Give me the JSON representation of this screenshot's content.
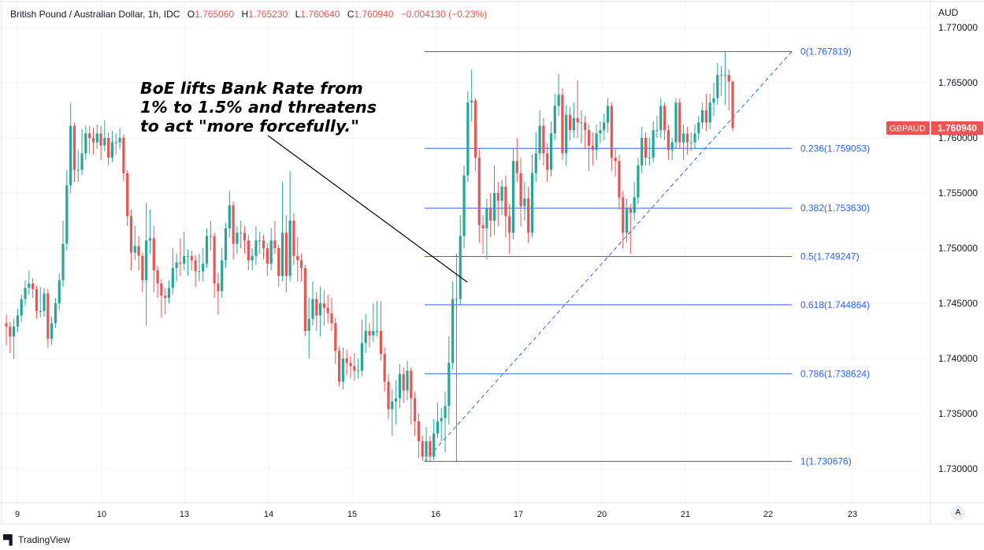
{
  "header": {
    "symbol_title": "British Pound / Australian Dollar, 1h, IDC",
    "open_label": "O",
    "open": "1.765060",
    "high_label": "H",
    "high": "1.765230",
    "low_label": "L",
    "low": "1.760640",
    "close_label": "C",
    "close": "1.760940",
    "change": "−0.004130 (−0.23%)"
  },
  "annotation": "BoE lifts Bank Rate from\n1% to 1.5% and threatens\nto act \"more forcefully.\"",
  "price_badge": {
    "symbol": "GBPAUD",
    "value": "1.760940",
    "color": "#ef5350"
  },
  "auto_scale_label": "A",
  "branding": {
    "logo": "17",
    "name": "TradingView"
  },
  "colors": {
    "up": "#26a69a",
    "down": "#ef5350",
    "fib": "#2962ff",
    "grid": "#f0f3fa"
  },
  "chart_data": {
    "type": "candlestick",
    "currency_label": "AUD",
    "ylim": [
      1.7275,
      1.7715
    ],
    "y_ticks": [
      "1.770000",
      "1.765000",
      "1.760000",
      "1.755000",
      "1.750000",
      "1.745000",
      "1.740000",
      "1.735000",
      "1.730000"
    ],
    "x_ticks": [
      "9",
      "10",
      "13",
      "14",
      "15",
      "16",
      "17",
      "20",
      "21",
      "22",
      "23"
    ],
    "grid": true,
    "fibonacci": [
      {
        "ratio": "0",
        "price": 1.767819,
        "label": "0(1.767819)"
      },
      {
        "ratio": "0.236",
        "price": 1.759053,
        "label": "0.236(1.759053)"
      },
      {
        "ratio": "0.382",
        "price": 1.75363,
        "label": "0.382(1.753630)"
      },
      {
        "ratio": "0.5",
        "price": 1.749247,
        "label": "0.5(1.749247)"
      },
      {
        "ratio": "0.618",
        "price": 1.744864,
        "label": "0.618(1.744864)"
      },
      {
        "ratio": "0.786",
        "price": 1.738624,
        "label": "0.786(1.738624)"
      },
      {
        "ratio": "1",
        "price": 1.730676,
        "label": "1(1.730676)"
      }
    ],
    "candles_ohlc": [
      [
        1.7432,
        1.744,
        1.7412,
        1.7429
      ],
      [
        1.7429,
        1.7433,
        1.7405,
        1.742
      ],
      [
        1.742,
        1.7436,
        1.74,
        1.7429
      ],
      [
        1.7429,
        1.7445,
        1.7424,
        1.7439
      ],
      [
        1.7439,
        1.7458,
        1.7433,
        1.7454
      ],
      [
        1.7454,
        1.7471,
        1.7448,
        1.7464
      ],
      [
        1.7464,
        1.748,
        1.7458,
        1.7468
      ],
      [
        1.7468,
        1.7473,
        1.7455,
        1.7463
      ],
      [
        1.7463,
        1.7466,
        1.7436,
        1.7443
      ],
      [
        1.7443,
        1.7465,
        1.7437,
        1.7443
      ],
      [
        1.7443,
        1.7464,
        1.7438,
        1.7459
      ],
      [
        1.7459,
        1.7463,
        1.741,
        1.7418
      ],
      [
        1.7418,
        1.7438,
        1.7412,
        1.7432
      ],
      [
        1.7432,
        1.7455,
        1.7428,
        1.745
      ],
      [
        1.745,
        1.7477,
        1.7444,
        1.7471
      ],
      [
        1.7471,
        1.7525,
        1.7465,
        1.7504
      ],
      [
        1.7504,
        1.7571,
        1.7498,
        1.7557
      ],
      [
        1.7557,
        1.7632,
        1.755,
        1.7611
      ],
      [
        1.7611,
        1.7614,
        1.756,
        1.7571
      ],
      [
        1.7571,
        1.7589,
        1.756,
        1.7571
      ],
      [
        1.7571,
        1.7608,
        1.7566,
        1.7586
      ],
      [
        1.7586,
        1.7611,
        1.758,
        1.7604
      ],
      [
        1.7604,
        1.7611,
        1.7586,
        1.76
      ],
      [
        1.76,
        1.7609,
        1.7585,
        1.7596
      ],
      [
        1.7596,
        1.7612,
        1.759,
        1.7604
      ],
      [
        1.7604,
        1.7611,
        1.758,
        1.7593
      ],
      [
        1.7593,
        1.7616,
        1.7588,
        1.76
      ],
      [
        1.76,
        1.7605,
        1.7575,
        1.7582
      ],
      [
        1.7582,
        1.7606,
        1.7578,
        1.7596
      ],
      [
        1.7596,
        1.7604,
        1.7585,
        1.7596
      ],
      [
        1.7596,
        1.7609,
        1.759,
        1.76
      ],
      [
        1.76,
        1.7603,
        1.7561,
        1.7568
      ],
      [
        1.7568,
        1.7571,
        1.752,
        1.7529
      ],
      [
        1.7529,
        1.7535,
        1.748,
        1.7496
      ],
      [
        1.7496,
        1.752,
        1.7489,
        1.7502
      ],
      [
        1.7502,
        1.7511,
        1.748,
        1.7493
      ],
      [
        1.7493,
        1.7496,
        1.746,
        1.7471
      ],
      [
        1.7471,
        1.7541,
        1.743,
        1.7507
      ],
      [
        1.7507,
        1.7535,
        1.7495,
        1.7509
      ],
      [
        1.7509,
        1.752,
        1.746,
        1.748
      ],
      [
        1.748,
        1.7484,
        1.7455,
        1.7468
      ],
      [
        1.7468,
        1.7472,
        1.7437,
        1.7457
      ],
      [
        1.7457,
        1.7464,
        1.744,
        1.7455
      ],
      [
        1.7455,
        1.7471,
        1.745,
        1.7464
      ],
      [
        1.7464,
        1.75,
        1.7458,
        1.7482
      ],
      [
        1.7482,
        1.7495,
        1.747,
        1.7487
      ],
      [
        1.7487,
        1.7509,
        1.7475,
        1.7486
      ],
      [
        1.7486,
        1.7515,
        1.748,
        1.7493
      ],
      [
        1.7493,
        1.7499,
        1.7475,
        1.7493
      ],
      [
        1.7493,
        1.7498,
        1.748,
        1.7489
      ],
      [
        1.7489,
        1.7494,
        1.7465,
        1.7479
      ],
      [
        1.7479,
        1.7495,
        1.747,
        1.7479
      ],
      [
        1.7479,
        1.75,
        1.747,
        1.7486
      ],
      [
        1.7486,
        1.7518,
        1.7482,
        1.7511
      ],
      [
        1.7511,
        1.7525,
        1.7498,
        1.7511
      ],
      [
        1.7511,
        1.7514,
        1.7455,
        1.7468
      ],
      [
        1.7468,
        1.7478,
        1.744,
        1.7461
      ],
      [
        1.7461,
        1.75,
        1.7455,
        1.7489
      ],
      [
        1.7489,
        1.7523,
        1.7482,
        1.7518
      ],
      [
        1.7518,
        1.7552,
        1.751,
        1.7539
      ],
      [
        1.7539,
        1.7542,
        1.749,
        1.7504
      ],
      [
        1.7504,
        1.752,
        1.7495,
        1.7514
      ],
      [
        1.7514,
        1.7525,
        1.75,
        1.7514
      ],
      [
        1.7514,
        1.752,
        1.7495,
        1.7507
      ],
      [
        1.7507,
        1.7512,
        1.748,
        1.7489
      ],
      [
        1.7489,
        1.75,
        1.748,
        1.7493
      ],
      [
        1.7493,
        1.752,
        1.7485,
        1.7507
      ],
      [
        1.7507,
        1.7515,
        1.7495,
        1.7507
      ],
      [
        1.7507,
        1.7512,
        1.749,
        1.75
      ],
      [
        1.75,
        1.7505,
        1.7475,
        1.7486
      ],
      [
        1.7486,
        1.7518,
        1.748,
        1.7507
      ],
      [
        1.7507,
        1.7525,
        1.7495,
        1.75
      ],
      [
        1.75,
        1.7503,
        1.7465,
        1.7475
      ],
      [
        1.7475,
        1.756,
        1.747,
        1.7514
      ],
      [
        1.7514,
        1.753,
        1.746,
        1.7475
      ],
      [
        1.7475,
        1.757,
        1.747,
        1.7525
      ],
      [
        1.7525,
        1.7532,
        1.7485,
        1.7493
      ],
      [
        1.7493,
        1.751,
        1.747,
        1.7489
      ],
      [
        1.7489,
        1.7495,
        1.747,
        1.7482
      ],
      [
        1.7482,
        1.7485,
        1.742,
        1.7425
      ],
      [
        1.7425,
        1.7455,
        1.74,
        1.7436
      ],
      [
        1.7436,
        1.747,
        1.743,
        1.7454
      ],
      [
        1.7454,
        1.746,
        1.7425,
        1.7439
      ],
      [
        1.7439,
        1.7465,
        1.742,
        1.745
      ],
      [
        1.745,
        1.7462,
        1.743,
        1.7446
      ],
      [
        1.7446,
        1.7458,
        1.7432,
        1.7441
      ],
      [
        1.7441,
        1.7455,
        1.7425,
        1.7432
      ],
      [
        1.7432,
        1.7437,
        1.7395,
        1.7407
      ],
      [
        1.7407,
        1.7411,
        1.7375,
        1.7379
      ],
      [
        1.7379,
        1.741,
        1.7372,
        1.74
      ],
      [
        1.74,
        1.7408,
        1.7385,
        1.7396
      ],
      [
        1.7396,
        1.7402,
        1.7382,
        1.7393
      ],
      [
        1.7393,
        1.7405,
        1.738,
        1.7389
      ],
      [
        1.7389,
        1.74,
        1.7382,
        1.7389
      ],
      [
        1.7389,
        1.7435,
        1.7384,
        1.7414
      ],
      [
        1.7414,
        1.744,
        1.7405,
        1.7425
      ],
      [
        1.7425,
        1.7432,
        1.741,
        1.7421
      ],
      [
        1.7421,
        1.745,
        1.7415,
        1.7425
      ],
      [
        1.7425,
        1.7452,
        1.742,
        1.7425
      ],
      [
        1.7425,
        1.7452,
        1.7398,
        1.7404
      ],
      [
        1.7404,
        1.741,
        1.737,
        1.7379
      ],
      [
        1.7379,
        1.7386,
        1.7345,
        1.7354
      ],
      [
        1.7354,
        1.7372,
        1.733,
        1.7361
      ],
      [
        1.7361,
        1.738,
        1.734,
        1.7364
      ],
      [
        1.7364,
        1.7395,
        1.7355,
        1.7386
      ],
      [
        1.7386,
        1.7392,
        1.736,
        1.7371
      ],
      [
        1.7371,
        1.7398,
        1.7362,
        1.7389
      ],
      [
        1.7389,
        1.7392,
        1.734,
        1.7364
      ],
      [
        1.7364,
        1.737,
        1.733,
        1.7343
      ],
      [
        1.7343,
        1.735,
        1.731,
        1.7325
      ],
      [
        1.7325,
        1.733,
        1.7307,
        1.7311
      ],
      [
        1.7311,
        1.7338,
        1.7307,
        1.7325
      ],
      [
        1.7325,
        1.733,
        1.7307,
        1.7311
      ],
      [
        1.7311,
        1.7345,
        1.7308,
        1.7332
      ],
      [
        1.7332,
        1.736,
        1.7328,
        1.7343
      ],
      [
        1.7343,
        1.7355,
        1.7325,
        1.7346
      ],
      [
        1.7346,
        1.737,
        1.7315,
        1.7357
      ],
      [
        1.7357,
        1.742,
        1.734,
        1.7396
      ],
      [
        1.7396,
        1.747,
        1.739,
        1.7454
      ],
      [
        1.7454,
        1.7495,
        1.7307,
        1.7454
      ],
      [
        1.7454,
        1.753,
        1.7448,
        1.7511
      ],
      [
        1.7511,
        1.7575,
        1.75,
        1.7566
      ],
      [
        1.7566,
        1.7642,
        1.756,
        1.7632
      ],
      [
        1.7632,
        1.7662,
        1.7615,
        1.7634
      ],
      [
        1.7634,
        1.7636,
        1.757,
        1.7582
      ],
      [
        1.7582,
        1.759,
        1.7505,
        1.7521
      ],
      [
        1.7521,
        1.753,
        1.7495,
        1.7518
      ],
      [
        1.7518,
        1.7545,
        1.749,
        1.7536
      ],
      [
        1.7536,
        1.755,
        1.751,
        1.7525
      ],
      [
        1.7525,
        1.7575,
        1.7512,
        1.755
      ],
      [
        1.755,
        1.756,
        1.752,
        1.7543
      ],
      [
        1.7543,
        1.7562,
        1.753,
        1.7556
      ],
      [
        1.7556,
        1.7566,
        1.751,
        1.7529
      ],
      [
        1.7529,
        1.754,
        1.7495,
        1.7514
      ],
      [
        1.7514,
        1.759,
        1.7508,
        1.7579
      ],
      [
        1.7579,
        1.76,
        1.756,
        1.7568
      ],
      [
        1.7568,
        1.7582,
        1.752,
        1.7538
      ],
      [
        1.7538,
        1.756,
        1.7525,
        1.7545
      ],
      [
        1.7545,
        1.7556,
        1.7505,
        1.7514
      ],
      [
        1.7514,
        1.7585,
        1.751,
        1.7568
      ],
      [
        1.7568,
        1.7605,
        1.756,
        1.7586
      ],
      [
        1.7586,
        1.7625,
        1.758,
        1.7611
      ],
      [
        1.7611,
        1.7618,
        1.7575,
        1.7586
      ],
      [
        1.7586,
        1.7595,
        1.756,
        1.7571
      ],
      [
        1.7571,
        1.7615,
        1.7565,
        1.7604
      ],
      [
        1.7604,
        1.764,
        1.7598,
        1.7629
      ],
      [
        1.7629,
        1.7658,
        1.762,
        1.7639
      ],
      [
        1.7639,
        1.7645,
        1.758,
        1.7586
      ],
      [
        1.7586,
        1.763,
        1.7575,
        1.7621
      ],
      [
        1.7621,
        1.7628,
        1.7598,
        1.7607
      ],
      [
        1.7607,
        1.7632,
        1.76,
        1.7618
      ],
      [
        1.7618,
        1.7652,
        1.76,
        1.7614
      ],
      [
        1.7614,
        1.7625,
        1.7595,
        1.7614
      ],
      [
        1.7614,
        1.762,
        1.759,
        1.7607
      ],
      [
        1.7607,
        1.7612,
        1.757,
        1.7593
      ],
      [
        1.7593,
        1.7605,
        1.7575,
        1.7589
      ],
      [
        1.7589,
        1.7612,
        1.758,
        1.7604
      ],
      [
        1.7604,
        1.7615,
        1.7595,
        1.7607
      ],
      [
        1.7607,
        1.7622,
        1.7598,
        1.7614
      ],
      [
        1.7614,
        1.7636,
        1.7605,
        1.7629
      ],
      [
        1.7629,
        1.7632,
        1.757,
        1.7582
      ],
      [
        1.7582,
        1.759,
        1.7565,
        1.7579
      ],
      [
        1.7579,
        1.7585,
        1.7535,
        1.7546
      ],
      [
        1.7546,
        1.7552,
        1.75,
        1.7514
      ],
      [
        1.7514,
        1.7545,
        1.7505,
        1.7536
      ],
      [
        1.7536,
        1.754,
        1.7495,
        1.7532
      ],
      [
        1.7532,
        1.756,
        1.7525,
        1.7546
      ],
      [
        1.7546,
        1.7582,
        1.754,
        1.7575
      ],
      [
        1.7575,
        1.761,
        1.7568,
        1.76
      ],
      [
        1.76,
        1.7605,
        1.7575,
        1.7582
      ],
      [
        1.7582,
        1.76,
        1.7575,
        1.7582
      ],
      [
        1.7582,
        1.7615,
        1.7578,
        1.7607
      ],
      [
        1.7607,
        1.762,
        1.76,
        1.7607
      ],
      [
        1.7607,
        1.7636,
        1.76,
        1.7629
      ],
      [
        1.7629,
        1.7632,
        1.7598,
        1.7607
      ],
      [
        1.7607,
        1.7612,
        1.758,
        1.7589
      ],
      [
        1.7589,
        1.76,
        1.758,
        1.7596
      ],
      [
        1.7596,
        1.7636,
        1.759,
        1.7632
      ],
      [
        1.7632,
        1.7636,
        1.759,
        1.7596
      ],
      [
        1.7596,
        1.7612,
        1.758,
        1.7604
      ],
      [
        1.7604,
        1.761,
        1.7585,
        1.7596
      ],
      [
        1.7596,
        1.7605,
        1.7588,
        1.7596
      ],
      [
        1.7596,
        1.7612,
        1.759,
        1.7604
      ],
      [
        1.7604,
        1.762,
        1.7598,
        1.7614
      ],
      [
        1.7614,
        1.7632,
        1.7608,
        1.7625
      ],
      [
        1.7625,
        1.764,
        1.7606,
        1.7614
      ],
      [
        1.7614,
        1.764,
        1.7608,
        1.7632
      ],
      [
        1.7632,
        1.765,
        1.762,
        1.7636
      ],
      [
        1.7636,
        1.7668,
        1.763,
        1.7657
      ],
      [
        1.7657,
        1.7665,
        1.7638,
        1.7657
      ],
      [
        1.7657,
        1.7678,
        1.763,
        1.7657
      ],
      [
        1.7657,
        1.7662,
        1.7625,
        1.7651
      ],
      [
        1.7651,
        1.7652,
        1.7606,
        1.7609
      ]
    ]
  }
}
